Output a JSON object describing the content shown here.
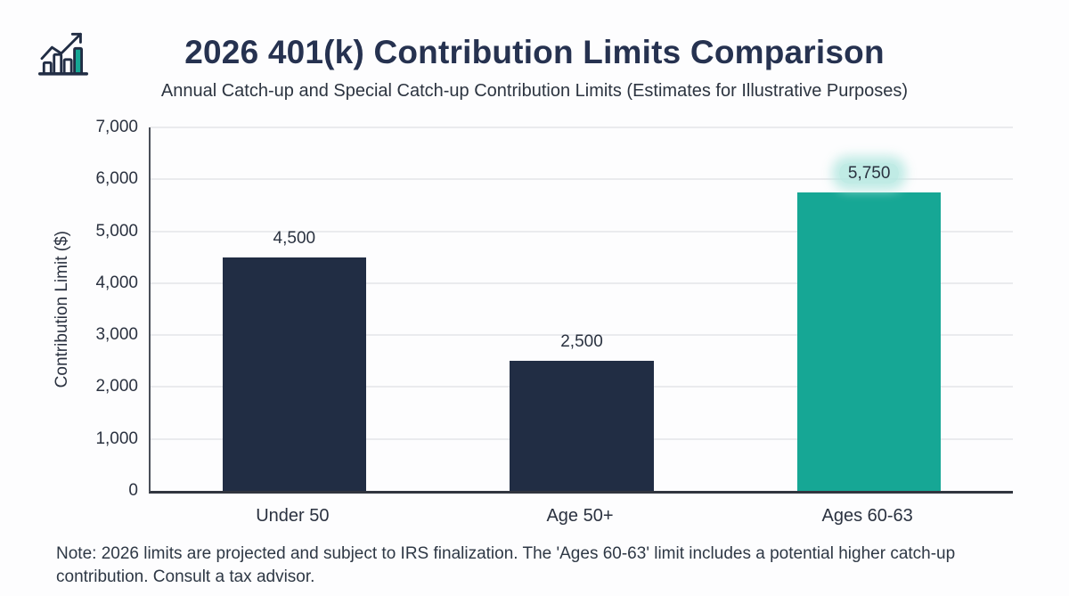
{
  "header": {
    "icon": "bar-chart-trend-icon",
    "title": "2026 401(k) Contribution Limits Comparison",
    "subtitle": "Annual Catch-up and Special Catch-up Contribution Limits (Estimates for Illustrative Purposes)"
  },
  "chart_data": {
    "type": "bar",
    "title": "2026 401(k) Contribution Limits Comparison",
    "subtitle": "Annual Catch-up and Special Catch-up Contribution Limits (Estimates for Illustrative Purposes)",
    "categories": [
      "Under 50",
      "Age 50+",
      "Ages 60-63"
    ],
    "values": [
      4500,
      2500,
      5750
    ],
    "value_labels": [
      "4,500",
      "2,500",
      "5,750"
    ],
    "bar_colors": [
      "#212d44",
      "#212d44",
      "#16a795"
    ],
    "highlighted_index": 2,
    "xlabel": "",
    "ylabel": "Contribution Limit ($)",
    "ylim": [
      0,
      7000
    ],
    "ytick_labels": [
      "0",
      "1,000",
      "2,000",
      "3,000",
      "4,000",
      "5,000",
      "6,000",
      "7,000"
    ],
    "grid": true,
    "legend": false
  },
  "note": "Note: 2026 limits are projected and subject to IRS finalization. The 'Ages 60-63' limit includes a potential higher catch-up contribution. Consult a tax advisor.",
  "colors": {
    "navy": "#212d44",
    "teal": "#16a795",
    "background": "#fdfdfe",
    "gridline": "#eaebee",
    "axis_line": "#31353f",
    "highlight_glow": "#b5e7e1",
    "text": "#2a3240"
  }
}
